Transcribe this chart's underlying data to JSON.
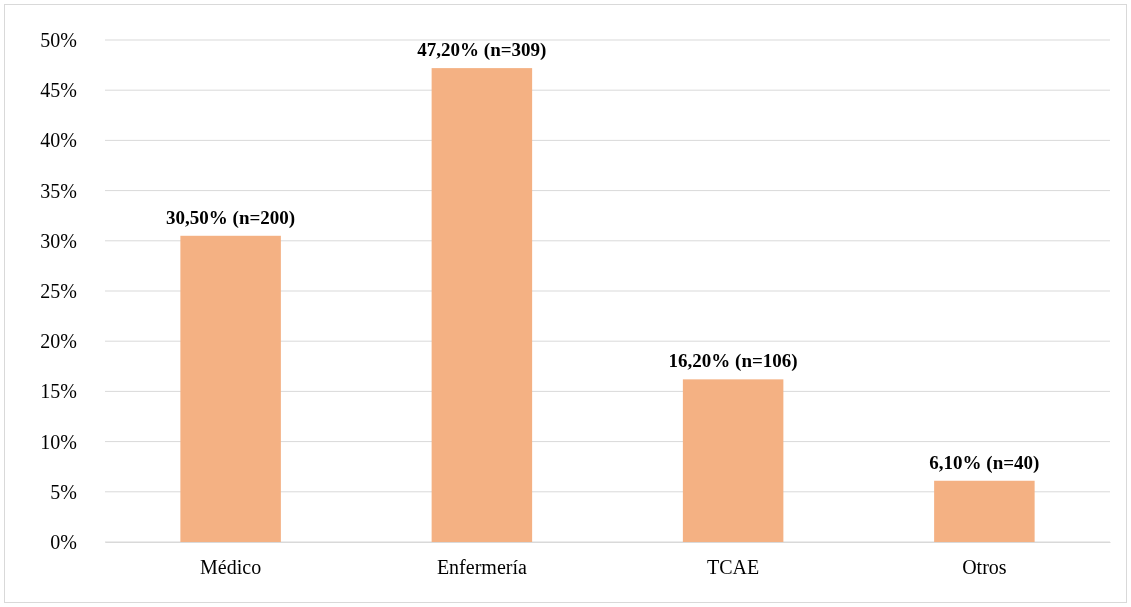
{
  "chart_data": {
    "type": "bar",
    "categories": [
      "Médico",
      "Enfermería",
      "TCAE",
      "Otros"
    ],
    "values": [
      30.5,
      47.2,
      16.2,
      6.1
    ],
    "value_labels": [
      "30,50% (n=200)",
      "47,20% (n=309)",
      "16,20% (n=106)",
      "6,10% (n=40)"
    ],
    "color": "#f4b183",
    "ylim": [
      0,
      50
    ],
    "yticks": [
      {
        "value": 0,
        "label": "0%"
      },
      {
        "value": 5,
        "label": "5%"
      },
      {
        "value": 10,
        "label": "10%"
      },
      {
        "value": 15,
        "label": "15%"
      },
      {
        "value": 20,
        "label": "20%"
      },
      {
        "value": 25,
        "label": "25%"
      },
      {
        "value": 30,
        "label": "30%"
      },
      {
        "value": 35,
        "label": "35%"
      },
      {
        "value": 40,
        "label": "40%"
      },
      {
        "value": 45,
        "label": "45%"
      },
      {
        "value": 50,
        "label": "50%"
      }
    ],
    "grid": "y"
  }
}
